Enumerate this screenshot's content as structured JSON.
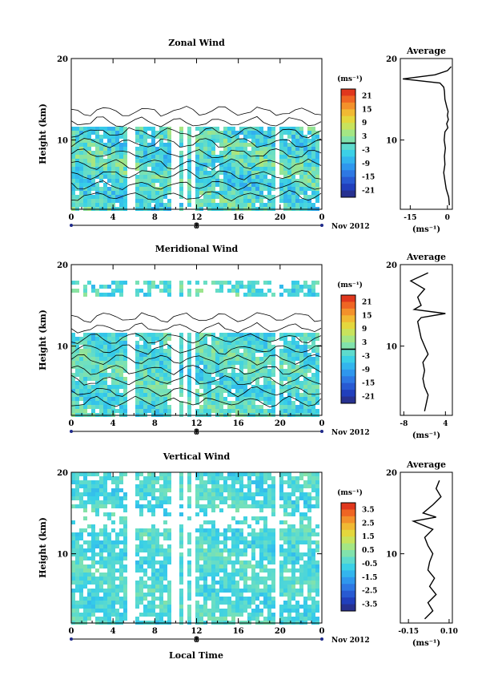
{
  "page": {
    "xlabel": "Local Time"
  },
  "chart_data": [
    {
      "type": "heatmap",
      "title": "Zonal Wind",
      "ylabel": "Height (km)",
      "ylim": [
        1.5,
        20
      ],
      "yticks": [
        "10",
        "20"
      ],
      "xlim": [
        0,
        24
      ],
      "xticks": [
        "0",
        "4",
        "8",
        "12",
        "16",
        "20",
        "0"
      ],
      "date_tick": "8",
      "date_label": "Nov 2012",
      "colorbar": {
        "unit": "(ms⁻¹)",
        "ticks": [
          "21",
          "15",
          "9",
          "3",
          "-3",
          "-9",
          "-15",
          "-21"
        ],
        "range": [
          -24,
          24
        ]
      },
      "contour_level": 0,
      "field": {
        "data_top_km": 11.5,
        "mean": -2,
        "spread": 5
      },
      "gaps_hours": [
        [
          5.4,
          6.1
        ],
        [
          9.7,
          10.2
        ],
        [
          10.8,
          11.1
        ],
        [
          11.6,
          11.9
        ],
        [
          14.8,
          15.1
        ],
        [
          17.5,
          17.8
        ],
        [
          19.7,
          20.0
        ],
        [
          23.6,
          24
        ]
      ],
      "profile": {
        "title": "Average",
        "xlabel": "(ms⁻¹)",
        "xticks": [
          "-15",
          "0"
        ],
        "xlim": [
          -19,
          2
        ],
        "height_km": [
          2,
          3,
          4,
          5,
          6,
          7,
          8,
          9,
          10,
          11,
          11.5,
          12,
          12.5,
          13,
          13.5,
          14,
          15,
          16,
          16.5,
          17,
          17.5,
          18,
          18.5,
          19
        ],
        "wind_ms": [
          0.8,
          0.5,
          -0.5,
          -1,
          -1.5,
          -1,
          -1.2,
          -0.8,
          -1.3,
          -1.0,
          0.2,
          -0.3,
          0.4,
          0,
          0.3,
          -0.2,
          -1,
          -1.2,
          -1.5,
          -3,
          -18,
          -5,
          0,
          1.5
        ]
      }
    },
    {
      "type": "heatmap",
      "title": "Meridional Wind",
      "ylabel": "Height (km)",
      "ylim": [
        1.5,
        20
      ],
      "yticks": [
        "10",
        "20"
      ],
      "xlim": [
        0,
        24
      ],
      "xticks": [
        "0",
        "4",
        "8",
        "12",
        "16",
        "20",
        "0"
      ],
      "date_tick": "8",
      "date_label": "Nov 2012",
      "colorbar": {
        "unit": "(ms⁻¹)",
        "ticks": [
          "21",
          "15",
          "9",
          "3",
          "-3",
          "-9",
          "-15",
          "-21"
        ],
        "range": [
          -24,
          24
        ]
      },
      "contour_level": 0,
      "field": {
        "data_top_km": 11.5,
        "mean": -2,
        "spread": 4
      },
      "gaps_hours": [
        [
          5.4,
          6.1
        ],
        [
          9.7,
          10.2
        ],
        [
          10.8,
          11.1
        ],
        [
          11.6,
          11.9
        ],
        [
          14.8,
          15.1
        ],
        [
          17.5,
          17.8
        ],
        [
          19.7,
          20.0
        ],
        [
          23.6,
          24
        ]
      ],
      "profile": {
        "title": "Average",
        "xlabel": "(ms⁻¹)",
        "xticks": [
          "-8",
          "4"
        ],
        "xlim": [
          -9,
          6
        ],
        "height_km": [
          2,
          3,
          4,
          5,
          6,
          7,
          8,
          9,
          10,
          11,
          12,
          13,
          13.5,
          14,
          14.5,
          15,
          16,
          17,
          18,
          19
        ],
        "wind_ms": [
          -2,
          -1.5,
          -1,
          -2,
          -2.5,
          -2,
          -2.5,
          -1,
          -2,
          -3,
          -3.5,
          -4,
          -3,
          4,
          -5,
          -3,
          -4,
          -2,
          -6,
          -1
        ]
      }
    },
    {
      "type": "heatmap",
      "title": "Vertical Wind",
      "ylabel": "Height (km)",
      "ylim": [
        1.5,
        20
      ],
      "yticks": [
        "10",
        "20"
      ],
      "xlim": [
        0,
        24
      ],
      "xticks": [
        "0",
        "4",
        "8",
        "12",
        "16",
        "20",
        "0"
      ],
      "date_tick": "8",
      "date_label": "Nov 2012",
      "colorbar": {
        "unit": "(ms⁻¹)",
        "ticks": [
          "3.5",
          "2.5",
          "1.5",
          "0.5",
          "-0.5",
          "-1.5",
          "-2.5",
          "-3.5"
        ],
        "range": [
          -4,
          4
        ]
      },
      "contour_level": null,
      "field": {
        "data_top_km": 20,
        "mean": -0.4,
        "spread": 0.5
      },
      "gaps_hours": [
        [
          5.4,
          6.1
        ],
        [
          9.7,
          10.2
        ],
        [
          10.8,
          11.1
        ],
        [
          11.6,
          11.9
        ],
        [
          14.8,
          15.1
        ],
        [
          17.5,
          17.8
        ],
        [
          19.7,
          20.0
        ],
        [
          23.6,
          24
        ]
      ],
      "profile": {
        "title": "Average",
        "xlabel": "(ms⁻¹)",
        "xticks": [
          "-0.15",
          "0.10"
        ],
        "xlim": [
          -0.2,
          0.12
        ],
        "height_km": [
          2,
          3,
          4,
          5,
          6,
          7,
          8,
          9,
          10,
          11,
          12,
          13,
          14,
          14.5,
          15,
          16,
          17,
          18,
          19
        ],
        "wind_ms": [
          -0.05,
          0.0,
          -0.03,
          0.02,
          -0.02,
          0.01,
          -0.03,
          -0.02,
          0.0,
          -0.03,
          -0.05,
          0.0,
          -0.12,
          0.02,
          -0.06,
          0.0,
          0.05,
          0.02,
          0.04
        ]
      }
    }
  ]
}
